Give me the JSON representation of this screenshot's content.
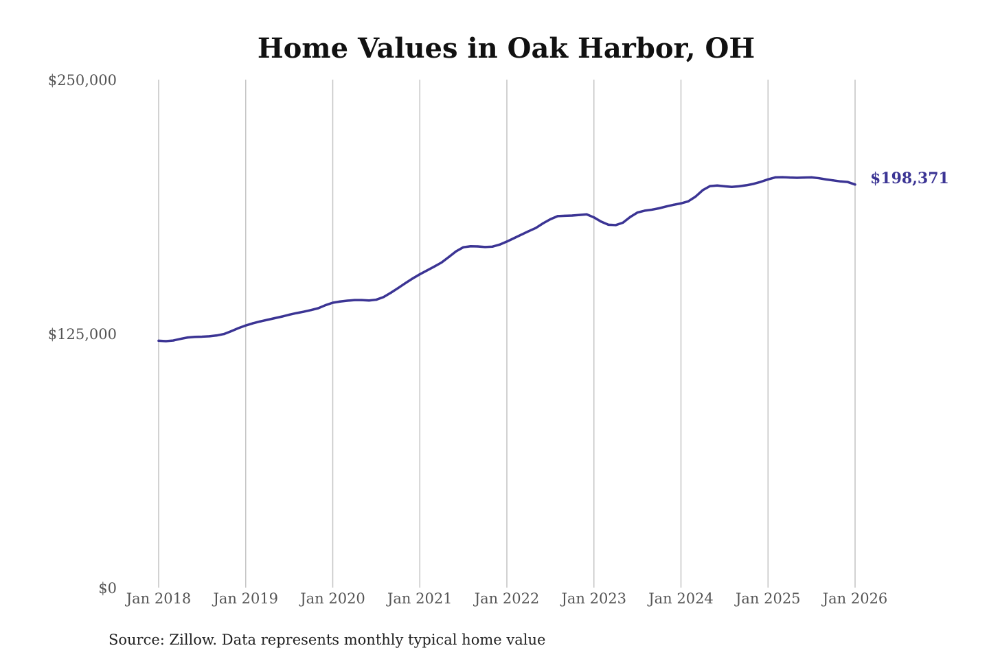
{
  "chart_data": {
    "type": "line",
    "title": "Home Values in Oak Harbor, OH",
    "source": "Source: Zillow. Data represents monthly typical home value",
    "ylim": [
      0,
      250000
    ],
    "y_ticks": [
      {
        "value": 250000,
        "label": "$250,000"
      },
      {
        "value": 125000,
        "label": "$125,000"
      },
      {
        "value": 0,
        "label": "$0"
      }
    ],
    "x_ticks": [
      {
        "date": "2018-01",
        "label": "Jan 2018"
      },
      {
        "date": "2019-01",
        "label": "Jan 2019"
      },
      {
        "date": "2020-01",
        "label": "Jan 2020"
      },
      {
        "date": "2021-01",
        "label": "Jan 2021"
      },
      {
        "date": "2022-01",
        "label": "Jan 2022"
      },
      {
        "date": "2023-01",
        "label": "Jan 2023"
      },
      {
        "date": "2024-01",
        "label": "Jan 2024"
      },
      {
        "date": "2025-01",
        "label": "Jan 2025"
      },
      {
        "date": "2026-01",
        "label": "Jan 2026"
      }
    ],
    "grid": "vertical",
    "line_color": "#3b3494",
    "end_label": "$198,371",
    "series": [
      {
        "values": [
          [
            "2018-01",
            121500
          ],
          [
            "2018-02",
            121300
          ],
          [
            "2018-03",
            121600
          ],
          [
            "2018-04",
            122400
          ],
          [
            "2018-05",
            123100
          ],
          [
            "2018-06",
            123400
          ],
          [
            "2018-07",
            123500
          ],
          [
            "2018-08",
            123700
          ],
          [
            "2018-09",
            124100
          ],
          [
            "2018-10",
            124800
          ],
          [
            "2018-11",
            126200
          ],
          [
            "2018-12",
            127700
          ],
          [
            "2019-01",
            129000
          ],
          [
            "2019-02",
            130100
          ],
          [
            "2019-03",
            131000
          ],
          [
            "2019-04",
            131800
          ],
          [
            "2019-05",
            132600
          ],
          [
            "2019-06",
            133400
          ],
          [
            "2019-07",
            134300
          ],
          [
            "2019-08",
            135100
          ],
          [
            "2019-09",
            135800
          ],
          [
            "2019-10",
            136600
          ],
          [
            "2019-11",
            137500
          ],
          [
            "2019-12",
            139000
          ],
          [
            "2020-01",
            140200
          ],
          [
            "2020-02",
            140800
          ],
          [
            "2020-03",
            141200
          ],
          [
            "2020-04",
            141500
          ],
          [
            "2020-05",
            141500
          ],
          [
            "2020-06",
            141300
          ],
          [
            "2020-07",
            141700
          ],
          [
            "2020-08",
            143000
          ],
          [
            "2020-09",
            145100
          ],
          [
            "2020-10",
            147400
          ],
          [
            "2020-11",
            149800
          ],
          [
            "2020-12",
            152100
          ],
          [
            "2021-01",
            154200
          ],
          [
            "2021-02",
            156100
          ],
          [
            "2021-03",
            158000
          ],
          [
            "2021-04",
            160000
          ],
          [
            "2021-05",
            162700
          ],
          [
            "2021-06",
            165500
          ],
          [
            "2021-07",
            167500
          ],
          [
            "2021-08",
            168000
          ],
          [
            "2021-09",
            167900
          ],
          [
            "2021-10",
            167600
          ],
          [
            "2021-11",
            167800
          ],
          [
            "2021-12",
            168800
          ],
          [
            "2022-01",
            170300
          ],
          [
            "2022-02",
            172000
          ],
          [
            "2022-03",
            173700
          ],
          [
            "2022-04",
            175400
          ],
          [
            "2022-05",
            177000
          ],
          [
            "2022-06",
            179300
          ],
          [
            "2022-07",
            181300
          ],
          [
            "2022-08",
            182800
          ],
          [
            "2022-09",
            183000
          ],
          [
            "2022-10",
            183100
          ],
          [
            "2022-11",
            183400
          ],
          [
            "2022-12",
            183700
          ],
          [
            "2023-01",
            182200
          ],
          [
            "2023-02",
            180100
          ],
          [
            "2023-03",
            178600
          ],
          [
            "2023-04",
            178400
          ],
          [
            "2023-05",
            179600
          ],
          [
            "2023-06",
            182400
          ],
          [
            "2023-07",
            184600
          ],
          [
            "2023-08",
            185500
          ],
          [
            "2023-09",
            186000
          ],
          [
            "2023-10",
            186700
          ],
          [
            "2023-11",
            187600
          ],
          [
            "2023-12",
            188400
          ],
          [
            "2024-01",
            189100
          ],
          [
            "2024-02",
            190100
          ],
          [
            "2024-03",
            192400
          ],
          [
            "2024-04",
            195600
          ],
          [
            "2024-05",
            197600
          ],
          [
            "2024-06",
            197900
          ],
          [
            "2024-07",
            197500
          ],
          [
            "2024-08",
            197200
          ],
          [
            "2024-09",
            197500
          ],
          [
            "2024-10",
            198000
          ],
          [
            "2024-11",
            198700
          ],
          [
            "2024-12",
            199700
          ],
          [
            "2025-01",
            200900
          ],
          [
            "2025-02",
            201900
          ],
          [
            "2025-03",
            202000
          ],
          [
            "2025-04",
            201800
          ],
          [
            "2025-05",
            201700
          ],
          [
            "2025-06",
            201800
          ],
          [
            "2025-07",
            201900
          ],
          [
            "2025-08",
            201500
          ],
          [
            "2025-09",
            200900
          ],
          [
            "2025-10",
            200400
          ],
          [
            "2025-11",
            199900
          ],
          [
            "2025-12",
            199600
          ],
          [
            "2026-01",
            198371
          ]
        ]
      }
    ]
  }
}
